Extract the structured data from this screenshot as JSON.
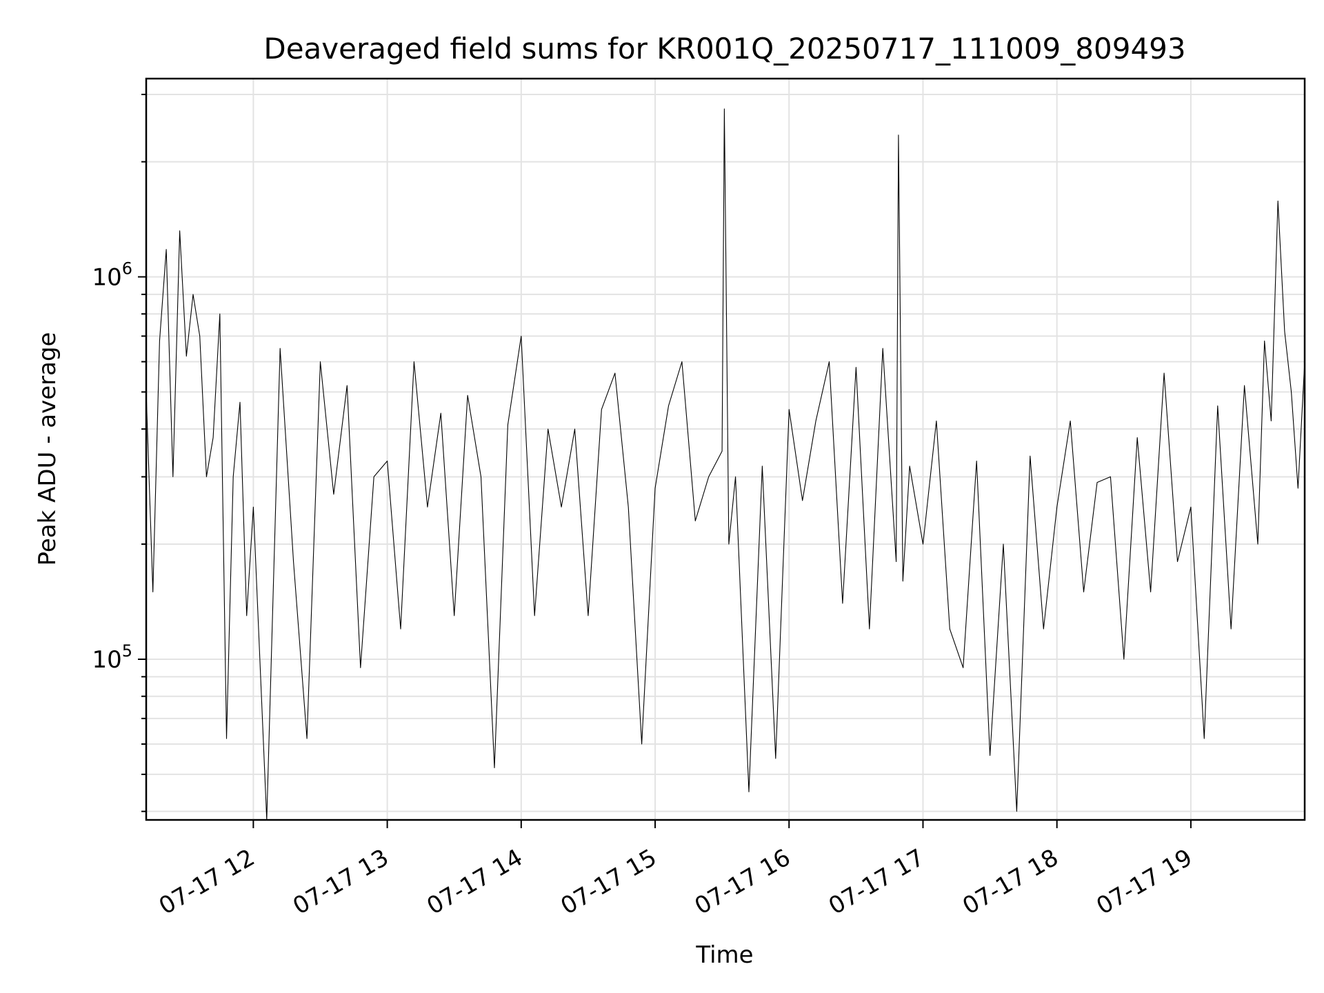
{
  "chart_data": {
    "type": "line",
    "title": "Deaveraged field sums for KR001Q_20250717_111009_809493",
    "xlabel": "Time",
    "ylabel": "Peak ADU - average",
    "yscale": "log",
    "xlim": [
      "2025-07-17 11:12",
      "2025-07-17 19:51"
    ],
    "ylim": [
      38000,
      3300000
    ],
    "xticks": [
      {
        "t": "2025-07-17 12:00",
        "label": "07-17 12"
      },
      {
        "t": "2025-07-17 13:00",
        "label": "07-17 13"
      },
      {
        "t": "2025-07-17 14:00",
        "label": "07-17 14"
      },
      {
        "t": "2025-07-17 15:00",
        "label": "07-17 15"
      },
      {
        "t": "2025-07-17 16:00",
        "label": "07-17 16"
      },
      {
        "t": "2025-07-17 17:00",
        "label": "07-17 17"
      },
      {
        "t": "2025-07-17 18:00",
        "label": "07-17 18"
      },
      {
        "t": "2025-07-17 19:00",
        "label": "07-17 19"
      }
    ],
    "yticks": [
      {
        "value": 100000,
        "base": "10",
        "exp": "5"
      },
      {
        "value": 1000000,
        "base": "10",
        "exp": "6"
      }
    ],
    "grid": true,
    "line_color": "#000000",
    "series": [
      {
        "x": [
          "2025-07-17 11:12",
          "2025-07-17 11:15",
          "2025-07-17 11:18",
          "2025-07-17 11:21",
          "2025-07-17 11:24",
          "2025-07-17 11:27",
          "2025-07-17 11:30",
          "2025-07-17 11:33",
          "2025-07-17 11:36",
          "2025-07-17 11:39",
          "2025-07-17 11:42",
          "2025-07-17 11:45",
          "2025-07-17 11:48",
          "2025-07-17 11:51",
          "2025-07-17 11:54",
          "2025-07-17 11:57",
          "2025-07-17 12:00",
          "2025-07-17 12:06",
          "2025-07-17 12:12",
          "2025-07-17 12:18",
          "2025-07-17 12:24",
          "2025-07-17 12:30",
          "2025-07-17 12:36",
          "2025-07-17 12:42",
          "2025-07-17 12:48",
          "2025-07-17 12:54",
          "2025-07-17 13:00",
          "2025-07-17 13:06",
          "2025-07-17 13:12",
          "2025-07-17 13:18",
          "2025-07-17 13:24",
          "2025-07-17 13:30",
          "2025-07-17 13:36",
          "2025-07-17 13:42",
          "2025-07-17 13:48",
          "2025-07-17 13:54",
          "2025-07-17 14:00",
          "2025-07-17 14:06",
          "2025-07-17 14:12",
          "2025-07-17 14:18",
          "2025-07-17 14:24",
          "2025-07-17 14:30",
          "2025-07-17 14:36",
          "2025-07-17 14:42",
          "2025-07-17 14:48",
          "2025-07-17 14:54",
          "2025-07-17 15:00",
          "2025-07-17 15:06",
          "2025-07-17 15:12",
          "2025-07-17 15:18",
          "2025-07-17 15:24",
          "2025-07-17 15:30",
          "2025-07-17 15:31",
          "2025-07-17 15:33",
          "2025-07-17 15:36",
          "2025-07-17 15:42",
          "2025-07-17 15:48",
          "2025-07-17 15:54",
          "2025-07-17 16:00",
          "2025-07-17 16:06",
          "2025-07-17 16:12",
          "2025-07-17 16:18",
          "2025-07-17 16:24",
          "2025-07-17 16:30",
          "2025-07-17 16:36",
          "2025-07-17 16:42",
          "2025-07-17 16:48",
          "2025-07-17 16:49",
          "2025-07-17 16:51",
          "2025-07-17 16:54",
          "2025-07-17 17:00",
          "2025-07-17 17:06",
          "2025-07-17 17:12",
          "2025-07-17 17:18",
          "2025-07-17 17:24",
          "2025-07-17 17:30",
          "2025-07-17 17:36",
          "2025-07-17 17:42",
          "2025-07-17 17:48",
          "2025-07-17 17:54",
          "2025-07-17 18:00",
          "2025-07-17 18:06",
          "2025-07-17 18:12",
          "2025-07-17 18:18",
          "2025-07-17 18:24",
          "2025-07-17 18:30",
          "2025-07-17 18:36",
          "2025-07-17 18:42",
          "2025-07-17 18:48",
          "2025-07-17 18:54",
          "2025-07-17 19:00",
          "2025-07-17 19:06",
          "2025-07-17 19:12",
          "2025-07-17 19:18",
          "2025-07-17 19:24",
          "2025-07-17 19:30",
          "2025-07-17 19:33",
          "2025-07-17 19:36",
          "2025-07-17 19:39",
          "2025-07-17 19:42",
          "2025-07-17 19:45",
          "2025-07-17 19:48",
          "2025-07-17 19:51"
        ],
        "y": [
          500000,
          150000,
          680000,
          1180000,
          300000,
          1320000,
          620000,
          900000,
          700000,
          300000,
          380000,
          800000,
          62000,
          300000,
          470000,
          130000,
          250000,
          38000,
          650000,
          180000,
          62000,
          600000,
          270000,
          520000,
          95000,
          300000,
          330000,
          120000,
          600000,
          250000,
          440000,
          130000,
          490000,
          300000,
          52000,
          410000,
          700000,
          130000,
          400000,
          250000,
          400000,
          130000,
          450000,
          560000,
          250000,
          60000,
          280000,
          460000,
          600000,
          230000,
          300000,
          350000,
          2750000,
          200000,
          300000,
          45000,
          320000,
          55000,
          450000,
          260000,
          420000,
          600000,
          140000,
          580000,
          120000,
          650000,
          180000,
          2350000,
          160000,
          320000,
          200000,
          420000,
          120000,
          95000,
          330000,
          56000,
          200000,
          40000,
          340000,
          120000,
          250000,
          420000,
          150000,
          290000,
          300000,
          100000,
          380000,
          150000,
          560000,
          180000,
          250000,
          62000,
          460000,
          120000,
          520000,
          200000,
          680000,
          420000,
          1580000,
          720000,
          500000,
          280000,
          600000
        ]
      }
    ]
  }
}
